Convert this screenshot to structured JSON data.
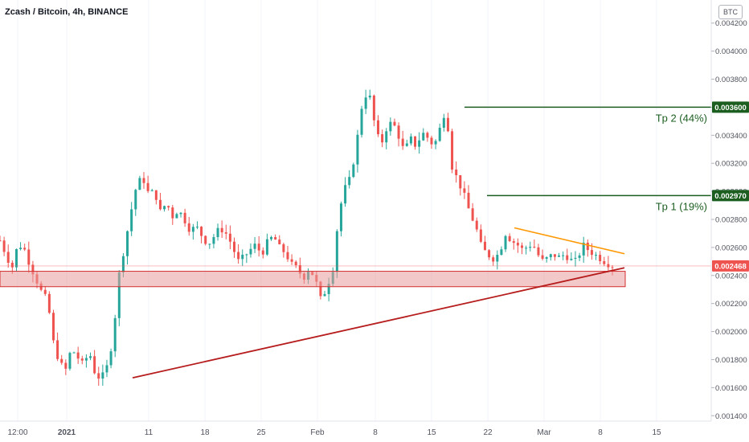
{
  "title": "Zcash / Bitcoin, 4h, BINANCE",
  "currency_badge": "BTC",
  "colors": {
    "up": "#26a69a",
    "down": "#ef5350",
    "support_zone_fill": "#e89a9a",
    "support_zone_border": "#d32f2f",
    "trendline": "#b71c1c",
    "resistance": "#ff9800",
    "target": "#1b5e20",
    "price": "#ef5350"
  },
  "chart_data": {
    "type": "candlestick",
    "title": "Zcash / Bitcoin, 4h, BINANCE",
    "y_ticks": [
      "0.004200",
      "0.004000",
      "0.003800",
      "0.003600",
      "0.003400",
      "0.003200",
      "0.003000",
      "0.002800",
      "0.002600",
      "0.002400",
      "0.002200",
      "0.002000",
      "0.001800",
      "0.001600",
      "0.001400"
    ],
    "ylim": [
      0.00139,
      0.00421
    ],
    "x_ticks": [
      {
        "label": "12:00",
        "bold": false
      },
      {
        "label": "2021",
        "bold": true
      },
      {
        "label": "11",
        "bold": false
      },
      {
        "label": "18",
        "bold": false
      },
      {
        "label": "25",
        "bold": false
      },
      {
        "label": "Feb",
        "bold": false
      },
      {
        "label": "8",
        "bold": false
      },
      {
        "label": "15",
        "bold": false
      },
      {
        "label": "22",
        "bold": false
      },
      {
        "label": "Mar",
        "bold": false
      },
      {
        "label": "8",
        "bold": false
      },
      {
        "label": "15",
        "bold": false
      }
    ],
    "close_path": [
      0.00265,
      0.00255,
      0.00245,
      0.00262,
      0.0026,
      0.00248,
      0.00238,
      0.00228,
      0.00222,
      0.00192,
      0.00178,
      0.00172,
      0.00188,
      0.00182,
      0.00176,
      0.00186,
      0.0017,
      0.00166,
      0.00175,
      0.00195,
      0.0024,
      0.00262,
      0.00285,
      0.00305,
      0.0031,
      0.00298,
      0.003,
      0.00285,
      0.00292,
      0.00282,
      0.00287,
      0.0028,
      0.00272,
      0.00275,
      0.00268,
      0.00262,
      0.00268,
      0.00274,
      0.0027,
      0.00262,
      0.0025,
      0.00253,
      0.00258,
      0.00262,
      0.00255,
      0.00264,
      0.00268,
      0.0026,
      0.00256,
      0.00248,
      0.00245,
      0.00238,
      0.00245,
      0.00238,
      0.00222,
      0.00232,
      0.00245,
      0.00285,
      0.00302,
      0.0031,
      0.00335,
      0.00365,
      0.00372,
      0.00348,
      0.00332,
      0.00345,
      0.0035,
      0.0034,
      0.00328,
      0.00338,
      0.00332,
      0.00342,
      0.00338,
      0.00332,
      0.00345,
      0.0036,
      0.00318,
      0.00308,
      0.00298,
      0.00285,
      0.00275,
      0.0026,
      0.00255,
      0.00252,
      0.00256,
      0.0027,
      0.00265,
      0.00262,
      0.00258,
      0.00262,
      0.0026,
      0.0025,
      0.00252,
      0.00255,
      0.00253,
      0.00255,
      0.00251,
      0.0025,
      0.00262,
      0.00258,
      0.00255,
      0.00252,
      0.00249,
      0.00247
    ],
    "current_price": "0.002468",
    "support_zone": {
      "top": 0.00243,
      "bottom": 0.00232
    },
    "rising_trendline": [
      {
        "date": "Jan 8",
        "value": 0.00167
      },
      {
        "date": "Mar 10",
        "value": 0.002455
      }
    ],
    "falling_resistance": [
      {
        "date": "Feb 23",
        "value": 0.00274
      },
      {
        "date": "Mar 10",
        "value": 0.002555
      }
    ],
    "targets": [
      {
        "label": "Tp 2 (44%)",
        "value": 0.0036,
        "badge": "0.003600"
      },
      {
        "label": "Tp 1 (19%)",
        "value": 0.00297,
        "badge": "0.002970"
      }
    ]
  }
}
